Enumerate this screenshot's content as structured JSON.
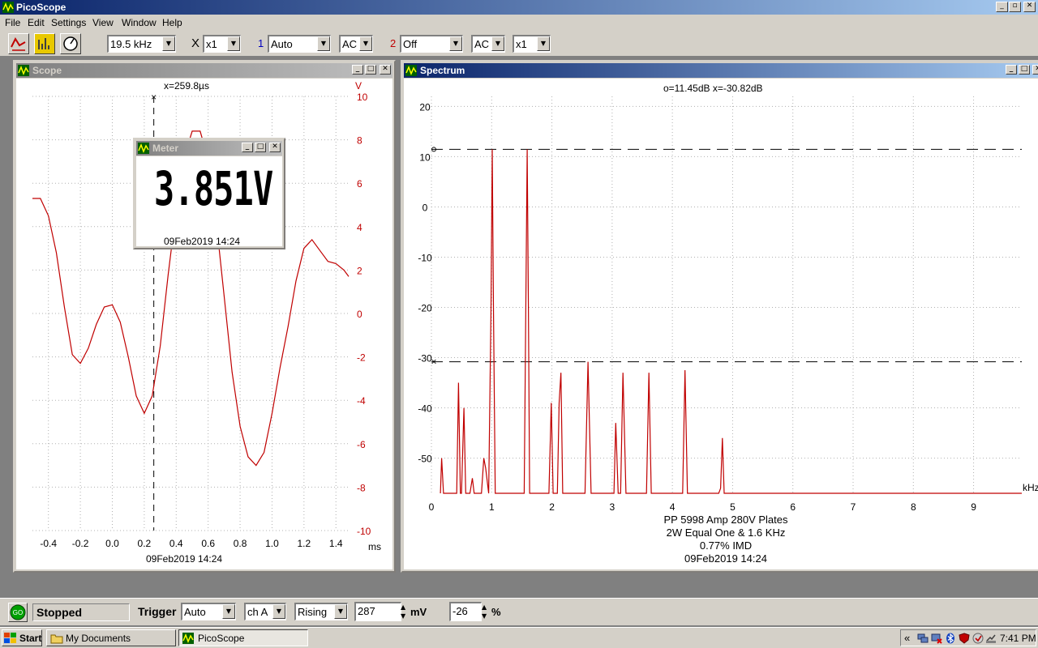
{
  "app": {
    "title": "PicoScope"
  },
  "menu": [
    "File",
    "Edit",
    "Settings",
    "View",
    "Window",
    "Help"
  ],
  "toolbar": {
    "timebase": "19.5 kHz",
    "x_label": "X",
    "x_mult": "x1",
    "ch1": {
      "num": "1",
      "range": "Auto",
      "coupling": "AC"
    },
    "ch2": {
      "num": "2",
      "range": "Off",
      "coupling": "AC",
      "mult": "x1"
    }
  },
  "scope": {
    "title": "Scope",
    "cursor_readout": "x=259.8µs",
    "unit": "V",
    "x_unit": "ms",
    "timestamp": "09Feb2019  14:24",
    "y_ticks": [
      "10",
      "8",
      "6",
      "4",
      "2",
      "0",
      "-2",
      "-4",
      "-6",
      "-8",
      "-10"
    ],
    "x_ticks": [
      "-0.4",
      "-0.2",
      "0.0",
      "0.2",
      "0.4",
      "0.6",
      "0.8",
      "1.0",
      "1.2",
      "1.4"
    ]
  },
  "meter": {
    "title": "Meter",
    "value": "3.851V",
    "timestamp": "09Feb2019  14:24"
  },
  "spectrum": {
    "title": "Spectrum",
    "cursor_readout": "o=11.45dB  x=-30.82dB",
    "x_unit": "kHz",
    "notes": [
      "PP 5998  Amp 280V Plates",
      "2W Equal One & 1.6 KHz",
      "0.77% IMD",
      "09Feb2019  14:24"
    ],
    "y_ticks": [
      "20",
      "10",
      "0",
      "-10",
      "-20",
      "-30",
      "-40",
      "-50"
    ],
    "x_ticks": [
      "0",
      "1",
      "2",
      "3",
      "4",
      "5",
      "6",
      "7",
      "8",
      "9"
    ]
  },
  "status": {
    "go_label": "GO",
    "state": "Stopped",
    "trigger_label": "Trigger",
    "trigger_mode": "Auto",
    "trigger_channel": "ch A",
    "trigger_edge": "Rising",
    "trigger_level": "287",
    "level_unit": "mV",
    "pre_trigger": "-26",
    "pct_unit": "%"
  },
  "taskbar": {
    "start": "Start",
    "items": [
      "My Documents",
      "PicoScope"
    ],
    "chevron": "«",
    "clock": "7:41 PM"
  },
  "chart_data": [
    {
      "type": "line",
      "title": "",
      "xlabel": "ms",
      "ylabel": "V",
      "xlim": [
        -0.5,
        1.48
      ],
      "ylim": [
        -10,
        10
      ],
      "grid": true,
      "series": [
        {
          "color": "#c00000",
          "x": [
            -0.5,
            -0.45,
            -0.4,
            -0.35,
            -0.3,
            -0.25,
            -0.2,
            -0.15,
            -0.1,
            -0.05,
            0.0,
            0.05,
            0.1,
            0.15,
            0.2,
            0.25,
            0.3,
            0.35,
            0.4,
            0.45,
            0.5,
            0.55,
            0.6,
            0.65,
            0.7,
            0.75,
            0.8,
            0.85,
            0.9,
            0.95,
            1.0,
            1.05,
            1.1,
            1.15,
            1.2,
            1.25,
            1.3,
            1.35,
            1.4,
            1.45,
            1.48
          ],
          "y": [
            5.3,
            5.3,
            4.5,
            2.8,
            0.3,
            -1.9,
            -2.3,
            -1.6,
            -0.5,
            0.3,
            0.4,
            -0.4,
            -2.0,
            -3.8,
            -4.6,
            -3.8,
            -1.5,
            1.8,
            4.8,
            7.2,
            8.4,
            8.4,
            7.1,
            4.3,
            0.8,
            -2.7,
            -5.2,
            -6.6,
            -7.0,
            -6.4,
            -4.6,
            -2.5,
            -0.6,
            1.5,
            3.0,
            3.4,
            2.9,
            2.4,
            2.3,
            2.0,
            1.7
          ]
        }
      ],
      "cursor_x": 0.2598
    },
    {
      "type": "line",
      "title": "",
      "xlabel": "kHz",
      "ylabel": "",
      "xlim": [
        0,
        9.8
      ],
      "ylim": [
        -57,
        22
      ],
      "grid": true,
      "series": [
        {
          "color": "#c00000",
          "x": [
            0.15,
            0.17,
            0.2,
            0.3,
            0.42,
            0.45,
            0.48,
            0.5,
            0.54,
            0.57,
            0.59,
            0.61,
            0.64,
            0.68,
            0.71,
            0.75,
            0.83,
            0.87,
            0.9,
            0.95,
            0.99,
            1.01,
            1.03,
            1.06,
            1.1,
            1.54,
            1.59,
            1.61,
            1.63,
            1.68,
            1.95,
            1.99,
            2.02,
            2.06,
            2.09,
            2.12,
            2.15,
            2.18,
            2.22,
            2.26,
            2.55,
            2.6,
            2.65,
            2.7,
            3.0,
            3.03,
            3.06,
            3.1,
            3.14,
            3.18,
            3.23,
            3.3,
            3.57,
            3.61,
            3.65,
            3.7,
            4.17,
            4.21,
            4.25,
            4.3,
            4.77,
            4.8,
            4.83,
            4.86,
            9.8
          ],
          "y": [
            -57,
            -50,
            -57,
            -57,
            -57,
            -35,
            -57,
            -57,
            -40,
            -57,
            -57,
            -57,
            -57,
            -54,
            -57,
            -57,
            -57,
            -50,
            -52,
            -57,
            -20,
            11.45,
            -20,
            -57,
            -57,
            -57,
            11.45,
            -20,
            -57,
            -57,
            -57,
            -39,
            -57,
            -57,
            -57,
            -39,
            -33,
            -57,
            -57,
            -57,
            -57,
            -30.82,
            -57,
            -57,
            -57,
            -57,
            -43,
            -57,
            -57,
            -33,
            -57,
            -57,
            -57,
            -33,
            -57,
            -57,
            -57,
            -32.5,
            -57,
            -57,
            -57,
            -56,
            -46,
            -57,
            -57
          ]
        }
      ],
      "cursor_o": 11.45,
      "cursor_x_level": -30.82
    }
  ]
}
